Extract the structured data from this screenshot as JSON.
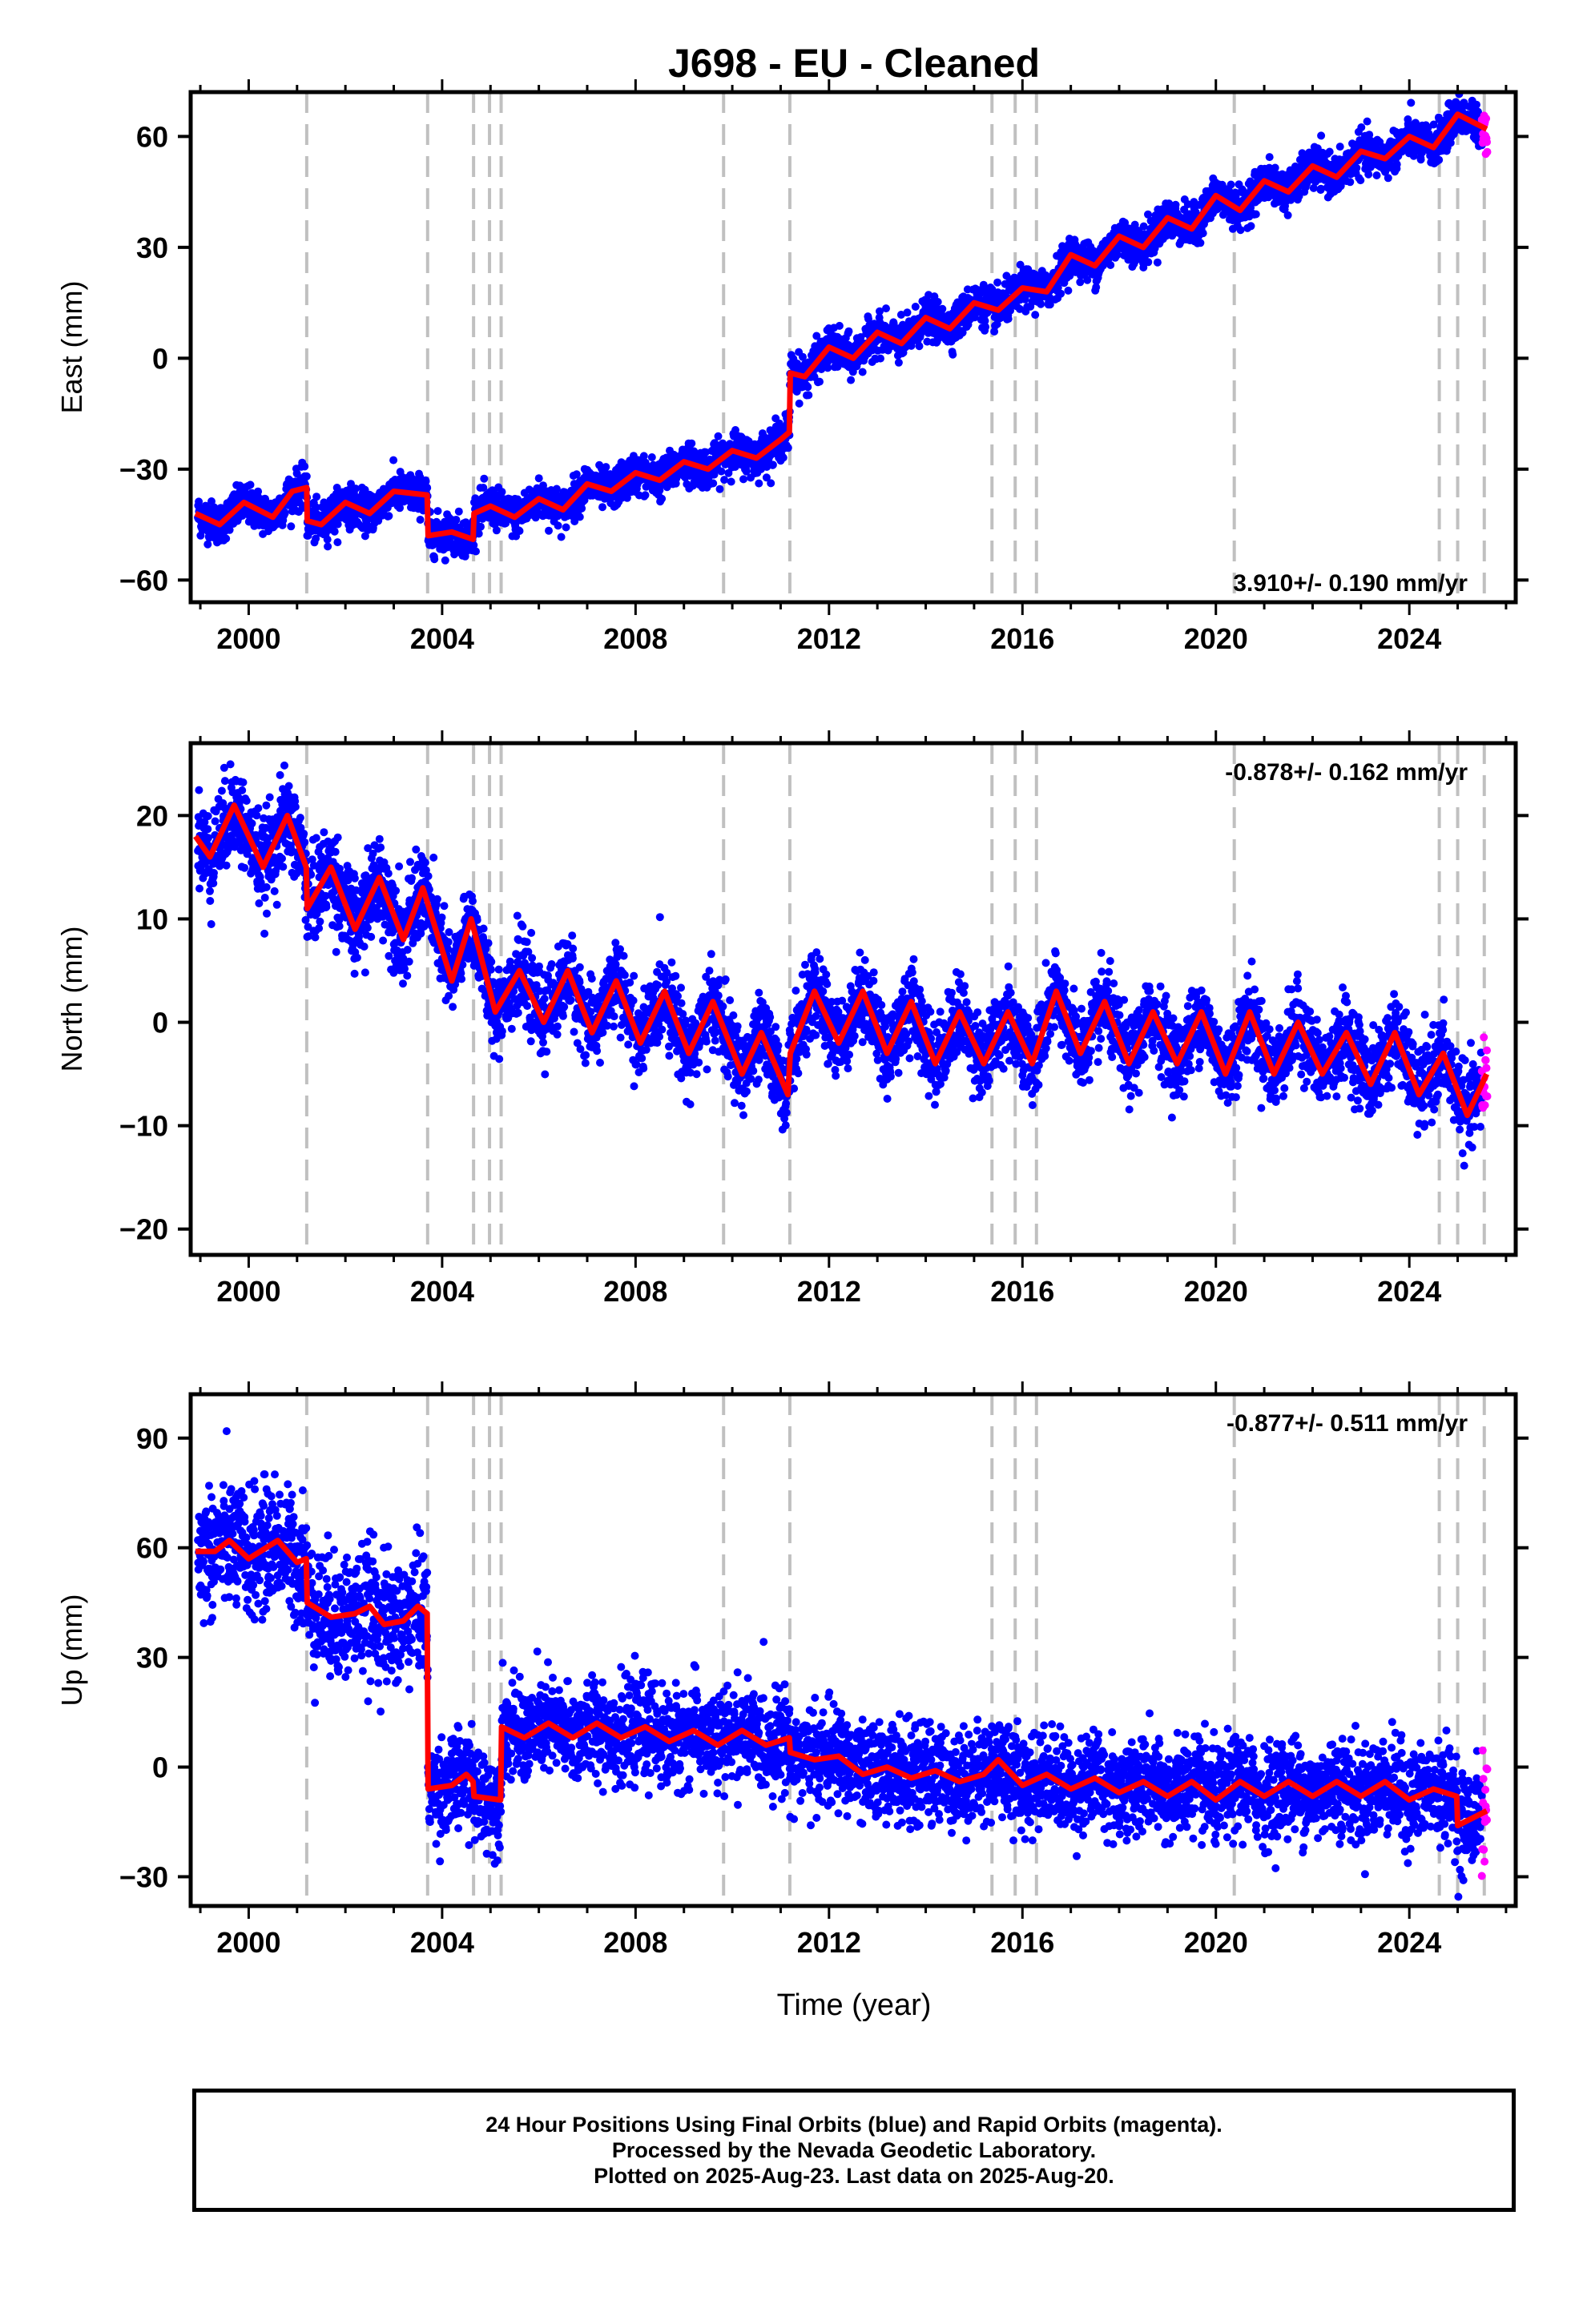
{
  "chart_data": {
    "type": "scatter",
    "title": "J698  - EU - Cleaned",
    "xlabel": "Time (year)",
    "x_ticks": [
      2000,
      2004,
      2008,
      2012,
      2016,
      2020,
      2024
    ],
    "xlim": [
      1998.8,
      2026.2
    ],
    "offsets": [
      2001.2,
      2003.7,
      2004.65,
      2004.98,
      2005.22,
      2009.82,
      2011.19,
      2015.37,
      2015.85,
      2016.29,
      2020.38,
      2024.62,
      2025.0,
      2025.55
    ],
    "series_colors": {
      "final_orbits": "#0000ff",
      "rapid_orbits": "#ff00ff",
      "model": "#ff0000",
      "offsets": "#c0c0c0"
    },
    "panels": [
      {
        "name": "east",
        "ylabel": "East (mm)",
        "ylim": [
          -66,
          72
        ],
        "y_ticks": [
          -60,
          -30,
          0,
          30,
          60
        ],
        "rate": "3.910+/- 0.190 mm/yr",
        "rate_position": "bottom-right",
        "model": [
          {
            "year": 1998.9,
            "value": -42
          },
          {
            "year": 1999.4,
            "value": -45
          },
          {
            "year": 1999.9,
            "value": -39
          },
          {
            "year": 2000.5,
            "value": -43
          },
          {
            "year": 2000.9,
            "value": -36
          },
          {
            "year": 2001.2,
            "value": -35
          },
          {
            "year": 2001.21,
            "value": -44
          },
          {
            "year": 2001.5,
            "value": -45
          },
          {
            "year": 2002.0,
            "value": -39
          },
          {
            "year": 2002.5,
            "value": -42
          },
          {
            "year": 2003.0,
            "value": -36
          },
          {
            "year": 2003.69,
            "value": -37
          },
          {
            "year": 2003.71,
            "value": -48
          },
          {
            "year": 2004.2,
            "value": -47
          },
          {
            "year": 2004.64,
            "value": -49
          },
          {
            "year": 2004.66,
            "value": -42
          },
          {
            "year": 2005.0,
            "value": -40
          },
          {
            "year": 2005.5,
            "value": -43
          },
          {
            "year": 2006.0,
            "value": -38
          },
          {
            "year": 2006.5,
            "value": -41
          },
          {
            "year": 2007.0,
            "value": -34
          },
          {
            "year": 2007.5,
            "value": -36
          },
          {
            "year": 2008.0,
            "value": -31
          },
          {
            "year": 2008.5,
            "value": -33
          },
          {
            "year": 2009.0,
            "value": -28
          },
          {
            "year": 2009.5,
            "value": -30
          },
          {
            "year": 2010.0,
            "value": -25
          },
          {
            "year": 2010.5,
            "value": -27
          },
          {
            "year": 2011.0,
            "value": -22
          },
          {
            "year": 2011.18,
            "value": -20
          },
          {
            "year": 2011.2,
            "value": -4
          },
          {
            "year": 2011.5,
            "value": -5
          },
          {
            "year": 2012.0,
            "value": 3
          },
          {
            "year": 2012.5,
            "value": 0
          },
          {
            "year": 2013.0,
            "value": 7
          },
          {
            "year": 2013.5,
            "value": 4
          },
          {
            "year": 2014.0,
            "value": 11
          },
          {
            "year": 2014.5,
            "value": 8
          },
          {
            "year": 2015.0,
            "value": 15
          },
          {
            "year": 2015.5,
            "value": 13
          },
          {
            "year": 2016.0,
            "value": 19
          },
          {
            "year": 2016.5,
            "value": 18
          },
          {
            "year": 2017.0,
            "value": 28
          },
          {
            "year": 2017.5,
            "value": 25
          },
          {
            "year": 2018.0,
            "value": 33
          },
          {
            "year": 2018.5,
            "value": 30
          },
          {
            "year": 2019.0,
            "value": 38
          },
          {
            "year": 2019.5,
            "value": 35
          },
          {
            "year": 2020.0,
            "value": 44
          },
          {
            "year": 2020.5,
            "value": 40
          },
          {
            "year": 2021.0,
            "value": 48
          },
          {
            "year": 2021.5,
            "value": 45
          },
          {
            "year": 2022.0,
            "value": 52
          },
          {
            "year": 2022.5,
            "value": 49
          },
          {
            "year": 2023.0,
            "value": 56
          },
          {
            "year": 2023.5,
            "value": 54
          },
          {
            "year": 2024.0,
            "value": 60
          },
          {
            "year": 2024.5,
            "value": 57
          },
          {
            "year": 2025.0,
            "value": 66
          },
          {
            "year": 2025.6,
            "value": 62
          }
        ]
      },
      {
        "name": "north",
        "ylabel": "North (mm)",
        "ylim": [
          -22.5,
          27
        ],
        "y_ticks": [
          -20,
          -10,
          0,
          10,
          20
        ],
        "rate": "-0.878+/- 0.162 mm/yr",
        "rate_position": "top-right",
        "model": [
          {
            "year": 1998.9,
            "value": 18
          },
          {
            "year": 1999.2,
            "value": 16
          },
          {
            "year": 1999.7,
            "value": 21
          },
          {
            "year": 2000.3,
            "value": 15
          },
          {
            "year": 2000.8,
            "value": 20
          },
          {
            "year": 2001.19,
            "value": 15
          },
          {
            "year": 2001.21,
            "value": 11
          },
          {
            "year": 2001.7,
            "value": 15
          },
          {
            "year": 2002.2,
            "value": 9
          },
          {
            "year": 2002.7,
            "value": 14
          },
          {
            "year": 2003.2,
            "value": 8
          },
          {
            "year": 2003.6,
            "value": 13
          },
          {
            "year": 2004.2,
            "value": 4
          },
          {
            "year": 2004.6,
            "value": 10
          },
          {
            "year": 2005.1,
            "value": 1
          },
          {
            "year": 2005.6,
            "value": 5
          },
          {
            "year": 2006.1,
            "value": 0
          },
          {
            "year": 2006.6,
            "value": 5
          },
          {
            "year": 2007.1,
            "value": -1
          },
          {
            "year": 2007.6,
            "value": 4
          },
          {
            "year": 2008.1,
            "value": -2
          },
          {
            "year": 2008.6,
            "value": 3
          },
          {
            "year": 2009.1,
            "value": -3
          },
          {
            "year": 2009.6,
            "value": 2
          },
          {
            "year": 2010.2,
            "value": -5
          },
          {
            "year": 2010.6,
            "value": -1
          },
          {
            "year": 2011.15,
            "value": -7
          },
          {
            "year": 2011.2,
            "value": -3
          },
          {
            "year": 2011.7,
            "value": 3
          },
          {
            "year": 2012.2,
            "value": -2
          },
          {
            "year": 2012.7,
            "value": 3
          },
          {
            "year": 2013.2,
            "value": -3
          },
          {
            "year": 2013.7,
            "value": 2
          },
          {
            "year": 2014.2,
            "value": -4
          },
          {
            "year": 2014.7,
            "value": 1
          },
          {
            "year": 2015.2,
            "value": -4
          },
          {
            "year": 2015.7,
            "value": 1
          },
          {
            "year": 2016.2,
            "value": -4
          },
          {
            "year": 2016.7,
            "value": 3
          },
          {
            "year": 2017.2,
            "value": -3
          },
          {
            "year": 2017.7,
            "value": 2
          },
          {
            "year": 2018.2,
            "value": -4
          },
          {
            "year": 2018.7,
            "value": 1
          },
          {
            "year": 2019.2,
            "value": -4
          },
          {
            "year": 2019.7,
            "value": 1
          },
          {
            "year": 2020.2,
            "value": -5
          },
          {
            "year": 2020.7,
            "value": 1
          },
          {
            "year": 2021.2,
            "value": -5
          },
          {
            "year": 2021.7,
            "value": 0
          },
          {
            "year": 2022.2,
            "value": -5
          },
          {
            "year": 2022.7,
            "value": -1
          },
          {
            "year": 2023.2,
            "value": -6
          },
          {
            "year": 2023.7,
            "value": -1
          },
          {
            "year": 2024.2,
            "value": -7
          },
          {
            "year": 2024.7,
            "value": -3
          },
          {
            "year": 2025.2,
            "value": -9
          },
          {
            "year": 2025.6,
            "value": -5
          }
        ]
      },
      {
        "name": "up",
        "ylabel": "Up (mm)",
        "ylim": [
          -38,
          102
        ],
        "y_ticks": [
          -30,
          0,
          30,
          60,
          90
        ],
        "rate": "-0.877+/- 0.511 mm/yr",
        "rate_position": "top-right",
        "model": [
          {
            "year": 1998.9,
            "value": 59
          },
          {
            "year": 1999.3,
            "value": 59
          },
          {
            "year": 1999.6,
            "value": 62
          },
          {
            "year": 2000.0,
            "value": 57
          },
          {
            "year": 2000.6,
            "value": 62
          },
          {
            "year": 2001.0,
            "value": 56
          },
          {
            "year": 2001.19,
            "value": 57
          },
          {
            "year": 2001.21,
            "value": 45
          },
          {
            "year": 2001.7,
            "value": 41
          },
          {
            "year": 2002.2,
            "value": 42
          },
          {
            "year": 2002.5,
            "value": 44
          },
          {
            "year": 2002.8,
            "value": 39
          },
          {
            "year": 2003.2,
            "value": 40
          },
          {
            "year": 2003.5,
            "value": 44
          },
          {
            "year": 2003.69,
            "value": 42
          },
          {
            "year": 2003.71,
            "value": -6
          },
          {
            "year": 2004.2,
            "value": -5
          },
          {
            "year": 2004.5,
            "value": -2
          },
          {
            "year": 2004.64,
            "value": -4
          },
          {
            "year": 2004.66,
            "value": -8
          },
          {
            "year": 2005.21,
            "value": -9
          },
          {
            "year": 2005.23,
            "value": 11
          },
          {
            "year": 2005.7,
            "value": 8
          },
          {
            "year": 2006.2,
            "value": 12
          },
          {
            "year": 2006.7,
            "value": 8
          },
          {
            "year": 2007.2,
            "value": 12
          },
          {
            "year": 2007.7,
            "value": 8
          },
          {
            "year": 2008.2,
            "value": 11
          },
          {
            "year": 2008.7,
            "value": 7
          },
          {
            "year": 2009.2,
            "value": 10
          },
          {
            "year": 2009.7,
            "value": 6
          },
          {
            "year": 2010.2,
            "value": 10
          },
          {
            "year": 2010.7,
            "value": 6
          },
          {
            "year": 2011.18,
            "value": 8
          },
          {
            "year": 2011.2,
            "value": 4
          },
          {
            "year": 2011.7,
            "value": 2
          },
          {
            "year": 2012.2,
            "value": 3
          },
          {
            "year": 2012.7,
            "value": -2
          },
          {
            "year": 2013.2,
            "value": 0
          },
          {
            "year": 2013.7,
            "value": -3
          },
          {
            "year": 2014.2,
            "value": -1
          },
          {
            "year": 2014.7,
            "value": -4
          },
          {
            "year": 2015.2,
            "value": -2
          },
          {
            "year": 2015.5,
            "value": 2
          },
          {
            "year": 2016.0,
            "value": -5
          },
          {
            "year": 2016.5,
            "value": -2
          },
          {
            "year": 2017.0,
            "value": -6
          },
          {
            "year": 2017.5,
            "value": -3
          },
          {
            "year": 2018.0,
            "value": -7
          },
          {
            "year": 2018.5,
            "value": -4
          },
          {
            "year": 2019.0,
            "value": -8
          },
          {
            "year": 2019.5,
            "value": -4
          },
          {
            "year": 2020.0,
            "value": -9
          },
          {
            "year": 2020.5,
            "value": -4
          },
          {
            "year": 2021.0,
            "value": -8
          },
          {
            "year": 2021.5,
            "value": -4
          },
          {
            "year": 2022.0,
            "value": -8
          },
          {
            "year": 2022.5,
            "value": -4
          },
          {
            "year": 2023.0,
            "value": -8
          },
          {
            "year": 2023.5,
            "value": -4
          },
          {
            "year": 2024.0,
            "value": -9
          },
          {
            "year": 2024.5,
            "value": -6
          },
          {
            "year": 2024.98,
            "value": -8
          },
          {
            "year": 2025.0,
            "value": -16
          },
          {
            "year": 2025.6,
            "value": -12
          }
        ]
      }
    ]
  },
  "footer": {
    "line1": "24 Hour Positions Using Final Orbits (blue) and Rapid Orbits (magenta).",
    "line2": "Processed by the Nevada Geodetic Laboratory.",
    "line3": "Plotted on 2025-Aug-23. Last data on 2025-Aug-20."
  }
}
